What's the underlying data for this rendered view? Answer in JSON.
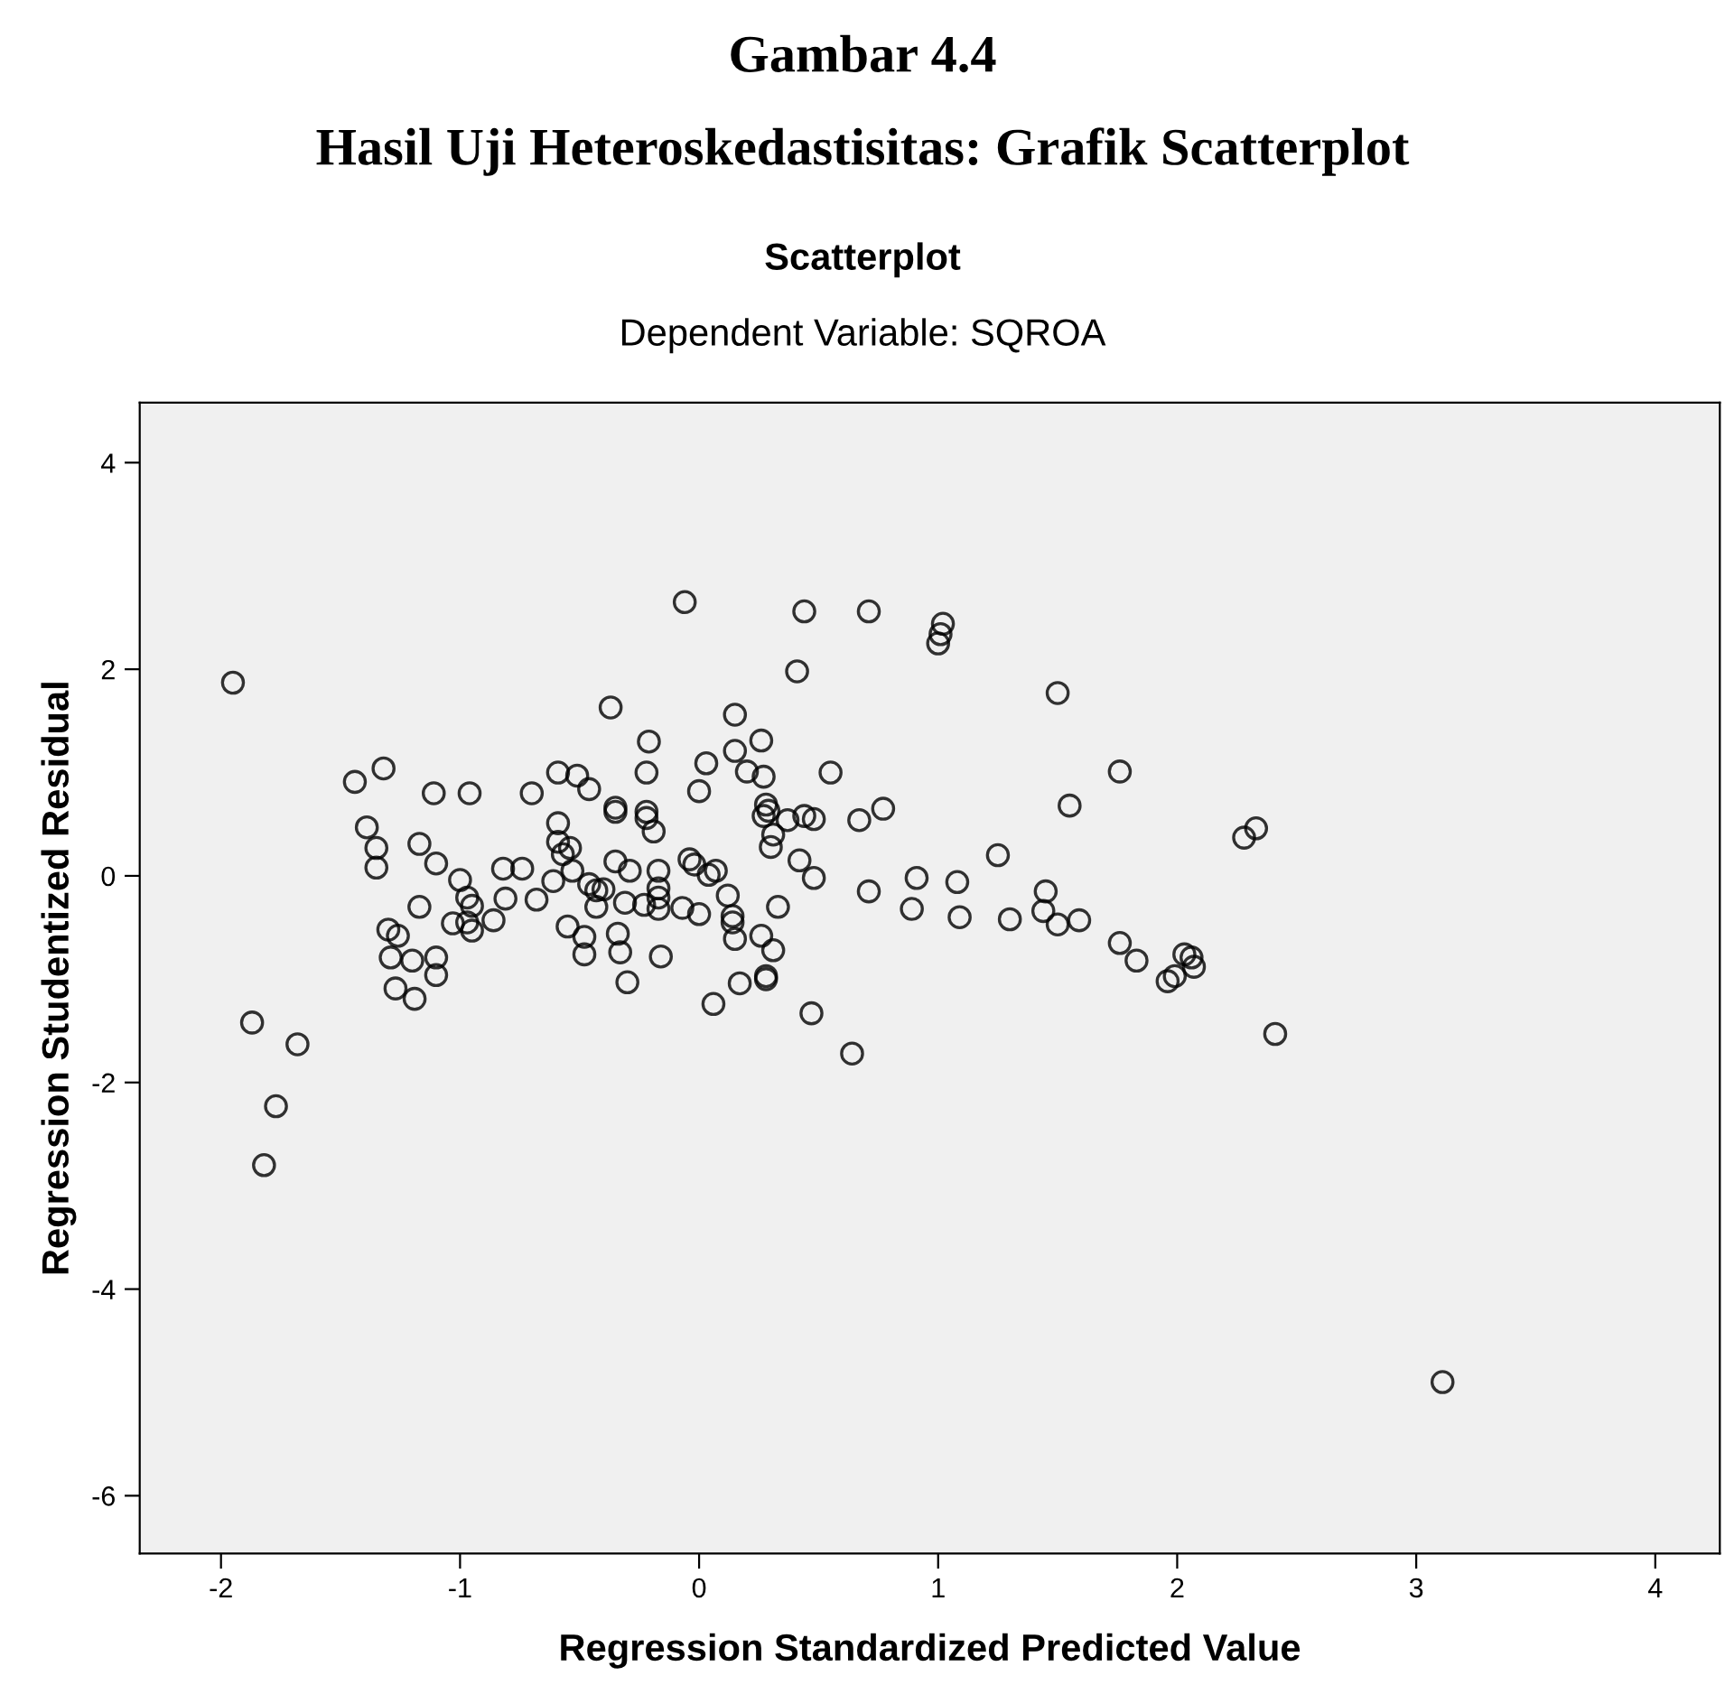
{
  "chart_data": {
    "type": "scatter",
    "title": "Scatterplot",
    "subtitle": "Dependent Variable: SQROA",
    "annotations": [
      "Gambar 4.4",
      "Hasil Uji Heteroskedastisitas: Grafik Scatterplot"
    ],
    "xlabel": "Regression Standardized Predicted Value",
    "ylabel": "Regression Studentized Residual",
    "xlim": [
      -2.34,
      4.27
    ],
    "ylim": [
      -6.56,
      4.58
    ],
    "xticks": [
      -2,
      -1,
      0,
      1,
      2,
      3,
      4
    ],
    "yticks": [
      -6,
      -4,
      -2,
      0,
      2,
      4
    ],
    "grid": false,
    "legend": false,
    "marker": "circle",
    "series": [
      {
        "color": "#000000",
        "x": [
          -1.95,
          -1.44,
          -1.32,
          -1.11,
          -0.96,
          -0.7,
          -0.59,
          -0.51,
          -0.46,
          -1.39,
          -1.35,
          -1.35,
          -1.17,
          -1.1,
          -0.59,
          -0.59,
          -0.54,
          -0.57,
          -0.53,
          -0.61,
          -0.82,
          -0.74,
          -1.0,
          -0.97,
          -0.95,
          -0.81,
          -0.68,
          -0.86,
          -1.03,
          -0.97,
          -0.95,
          -1.17,
          -1.3,
          -1.26,
          -1.29,
          -1.2,
          -1.1,
          -1.1,
          -1.27,
          -1.19,
          -1.87,
          -1.68,
          -1.77,
          -1.82,
          -0.55,
          -0.48,
          -0.48,
          -0.46,
          -0.43,
          -0.4,
          -0.43,
          -0.06,
          0.44,
          0.71,
          1.02,
          1.01,
          1.0,
          0.41,
          1.5,
          1.76,
          1.55,
          -0.37,
          -0.21,
          -0.22,
          0.15,
          0.26,
          0.15,
          0.03,
          0.2,
          0.27,
          0.55,
          0.0,
          -0.35,
          -0.35,
          -0.22,
          -0.22,
          -0.19,
          0.28,
          0.29,
          0.27,
          0.37,
          0.44,
          0.48,
          0.31,
          0.3,
          0.67,
          0.77,
          1.25,
          -0.35,
          -0.29,
          -0.17,
          -0.04,
          -0.02,
          0.07,
          0.04,
          -0.17,
          -0.17,
          -0.31,
          -0.23,
          -0.17,
          -0.07,
          0.0,
          0.12,
          0.14,
          0.14,
          0.15,
          0.33,
          0.42,
          0.48,
          0.26,
          0.31,
          0.28,
          0.28,
          0.17,
          -0.34,
          -0.33,
          -0.16,
          -0.3,
          0.06,
          0.47,
          0.64,
          0.71,
          0.91,
          0.89,
          1.08,
          1.09,
          1.3,
          1.45,
          1.44,
          1.5,
          1.59,
          1.76,
          2.28,
          2.33,
          1.83,
          2.03,
          2.06,
          2.07,
          1.99,
          1.96,
          2.41,
          3.11
        ],
        "values": [
          1.87,
          0.91,
          1.04,
          0.8,
          0.8,
          0.8,
          1.0,
          0.97,
          0.84,
          0.47,
          0.27,
          0.08,
          0.31,
          0.12,
          0.51,
          0.33,
          0.27,
          0.21,
          0.05,
          -0.05,
          0.07,
          0.07,
          -0.04,
          -0.21,
          -0.29,
          -0.22,
          -0.23,
          -0.43,
          -0.46,
          -0.45,
          -0.53,
          -0.3,
          -0.52,
          -0.58,
          -0.79,
          -0.82,
          -0.79,
          -0.96,
          -1.09,
          -1.19,
          -1.42,
          -1.63,
          -2.23,
          -2.8,
          -0.49,
          -0.59,
          -0.76,
          -0.08,
          -0.14,
          -0.13,
          -0.3,
          2.65,
          2.56,
          2.56,
          2.44,
          2.34,
          2.25,
          1.98,
          1.77,
          1.01,
          0.68,
          1.63,
          1.3,
          1.0,
          1.56,
          1.31,
          1.21,
          1.09,
          1.01,
          0.96,
          1.0,
          0.82,
          0.66,
          0.62,
          0.62,
          0.56,
          0.43,
          0.69,
          0.63,
          0.58,
          0.54,
          0.58,
          0.55,
          0.4,
          0.28,
          0.54,
          0.65,
          0.2,
          0.14,
          0.05,
          0.05,
          0.16,
          0.11,
          0.05,
          0.01,
          -0.12,
          -0.21,
          -0.26,
          -0.28,
          -0.32,
          -0.31,
          -0.37,
          -0.19,
          -0.39,
          -0.45,
          -0.61,
          -0.3,
          0.15,
          -0.02,
          -0.58,
          -0.72,
          -0.97,
          -1.0,
          -1.04,
          -0.56,
          -0.74,
          -0.78,
          -1.03,
          -1.24,
          -1.33,
          -1.72,
          -0.15,
          -0.02,
          -0.32,
          -0.06,
          -0.4,
          -0.42,
          -0.15,
          -0.34,
          -0.47,
          -0.43,
          -0.65,
          0.37,
          0.46,
          -0.82,
          -0.76,
          -0.79,
          -0.88,
          -0.97,
          -1.02,
          -1.53,
          -4.9
        ]
      }
    ]
  }
}
